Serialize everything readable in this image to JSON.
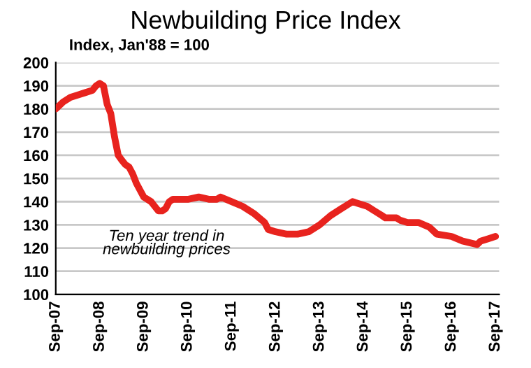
{
  "chart_data": {
    "type": "line",
    "title": "Newbuilding Price Index",
    "subtitle": "Index, Jan'88 = 100",
    "annotations": [
      "Ten year trend in\nnewbuilding prices"
    ],
    "x": [
      "2007-09",
      "2007-11",
      "2008-01",
      "2008-03",
      "2008-05",
      "2008-07",
      "2008-08",
      "2008-09",
      "2008-10",
      "2008-11",
      "2008-12",
      "2009-01",
      "2009-02",
      "2009-03",
      "2009-04",
      "2009-05",
      "2009-06",
      "2009-07",
      "2009-08",
      "2009-09",
      "2009-10",
      "2009-11",
      "2009-12",
      "2010-01",
      "2010-02",
      "2010-03",
      "2010-04",
      "2010-05",
      "2010-06",
      "2010-09",
      "2010-12",
      "2011-03",
      "2011-05",
      "2011-06",
      "2011-09",
      "2011-12",
      "2012-03",
      "2012-06",
      "2012-07",
      "2012-09",
      "2012-12",
      "2013-03",
      "2013-06",
      "2013-09",
      "2013-12",
      "2014-03",
      "2014-06",
      "2014-08",
      "2014-10",
      "2014-12",
      "2015-02",
      "2015-03",
      "2015-06",
      "2015-07",
      "2015-09",
      "2015-12",
      "2016-03",
      "2016-05",
      "2016-09",
      "2016-12",
      "2017-04",
      "2017-05",
      "2017-07",
      "2017-09"
    ],
    "series": [
      {
        "color": "#e8231e",
        "values": [
          180,
          183,
          185,
          186,
          187,
          188,
          190,
          191,
          190,
          182,
          178,
          168,
          160,
          158,
          156,
          155,
          152,
          148,
          145,
          142,
          141,
          140,
          138,
          136,
          136,
          137,
          140,
          141,
          141,
          141,
          142,
          141,
          141,
          142,
          140,
          138,
          135,
          131,
          128,
          127,
          126,
          126,
          127,
          130,
          134,
          137,
          140,
          139,
          138,
          136,
          134,
          133,
          133,
          132,
          131,
          131,
          129,
          126,
          125,
          123,
          121.5,
          123,
          124,
          125
        ]
      }
    ],
    "xlim": [
      "2007-09",
      "2017-10"
    ],
    "xticks": [
      {
        "value": "2007-09",
        "label": "Sep-07"
      },
      {
        "value": "2008-09",
        "label": "Sep-08"
      },
      {
        "value": "2009-09",
        "label": "Sep-09"
      },
      {
        "value": "2010-09",
        "label": "Sep-10"
      },
      {
        "value": "2011-09",
        "label": "Sep-11"
      },
      {
        "value": "2012-09",
        "label": "Sep-12"
      },
      {
        "value": "2013-09",
        "label": "Sep-13"
      },
      {
        "value": "2014-09",
        "label": "Sep-14"
      },
      {
        "value": "2015-09",
        "label": "Sep-15"
      },
      {
        "value": "2016-09",
        "label": "Sep-16"
      },
      {
        "value": "2017-09",
        "label": "Sep-17"
      }
    ],
    "ylim": [
      100,
      200
    ],
    "yticks": [
      100,
      110,
      120,
      130,
      140,
      150,
      160,
      170,
      180,
      190,
      200
    ],
    "grid": "y",
    "legend": false,
    "marker": "none",
    "line_style": "solid"
  }
}
